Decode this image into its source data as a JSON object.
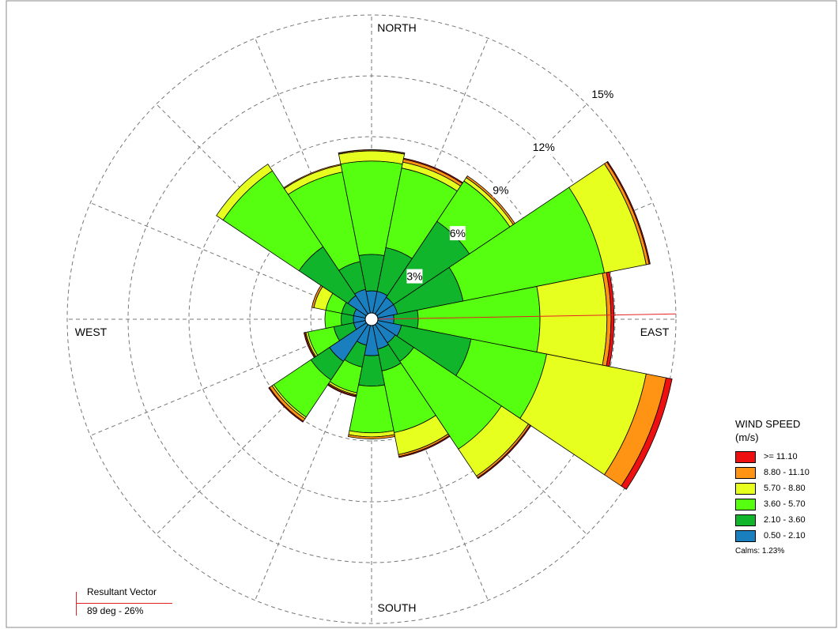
{
  "chart_data": {
    "type": "wind-rose",
    "title": "",
    "directions": [
      "N",
      "NNE",
      "NE",
      "ENE",
      "E",
      "ESE",
      "SE",
      "SSE",
      "S",
      "SSW",
      "SW",
      "WSW",
      "W",
      "WNW",
      "NW",
      "NNW"
    ],
    "compass_labels": {
      "north": "NORTH",
      "south": "SOUTH",
      "east": "EAST",
      "west": "WEST"
    },
    "ring_labels": [
      "3%",
      "6%",
      "9%",
      "12%",
      "15%"
    ],
    "rmax_percent": 15,
    "bins": [
      {
        "label": "0.50 - 2.10",
        "color": "#1a7fbf"
      },
      {
        "label": "2.10 - 3.60",
        "color": "#11b52b"
      },
      {
        "label": "3.60 - 5.70",
        "color": "#55ff0f"
      },
      {
        "label": "5.70 - 8.80",
        "color": "#e6ff1f"
      },
      {
        "label": "8.80 - 11.10",
        "color": "#ff9314"
      },
      {
        "label": ">= 11.10",
        "color": "#ee1010"
      }
    ],
    "cumulative_percent": [
      [
        1.4,
        3.2,
        7.8,
        8.3,
        8.35,
        8.36
      ],
      [
        1.4,
        3.6,
        7.6,
        7.9,
        8.05,
        8.1
      ],
      [
        1.3,
        5.8,
        8.2,
        8.4,
        8.5,
        8.5
      ],
      [
        1.3,
        4.6,
        11.7,
        13.8,
        13.95,
        14.0
      ],
      [
        1.1,
        2.3,
        8.3,
        11.6,
        11.8,
        11.95
      ],
      [
        1.5,
        5.0,
        8.8,
        13.8,
        14.8,
        15.1
      ],
      [
        1.4,
        2.5,
        7.7,
        9.3,
        9.4,
        9.45
      ],
      [
        1.5,
        2.6,
        5.7,
        6.8,
        6.9,
        6.95
      ],
      [
        1.8,
        3.3,
        5.6,
        5.8,
        5.9,
        5.9
      ],
      [
        1.3,
        2.4,
        3.7,
        3.8,
        3.85,
        3.9
      ],
      [
        2.5,
        3.6,
        5.8,
        5.9,
        6.05,
        6.1
      ],
      [
        0.9,
        1.9,
        3.2,
        3.3,
        3.35,
        3.4
      ],
      [
        0.9,
        1.5,
        2.3,
        2.3,
        2.3,
        2.3
      ],
      [
        0.9,
        1.5,
        2.3,
        2.9,
        3.0,
        3.0
      ],
      [
        1.4,
        4.3,
        8.8,
        9.2,
        9.2,
        9.2
      ],
      [
        1.5,
        2.9,
        7.4,
        7.75,
        7.8,
        7.8
      ]
    ]
  },
  "legend": {
    "title_line1": "WIND SPEED",
    "title_line2": "(m/s)",
    "items": [
      {
        "label": ">= 11.10",
        "color": "#ee1010"
      },
      {
        "label": "8.80 - 11.10",
        "color": "#ff9314"
      },
      {
        "label": "5.70 - 8.80",
        "color": "#e6ff1f"
      },
      {
        "label": "3.60 - 5.70",
        "color": "#55ff0f"
      },
      {
        "label": "2.10 - 3.60",
        "color": "#11b52b"
      },
      {
        "label": "0.50 - 2.10",
        "color": "#1a7fbf"
      }
    ],
    "calms": "Calms: 1.23%"
  },
  "resultant_vector": {
    "title": "Resultant Vector",
    "value": "89 deg - 26%",
    "direction_deg": 89,
    "color": "#e52222"
  }
}
